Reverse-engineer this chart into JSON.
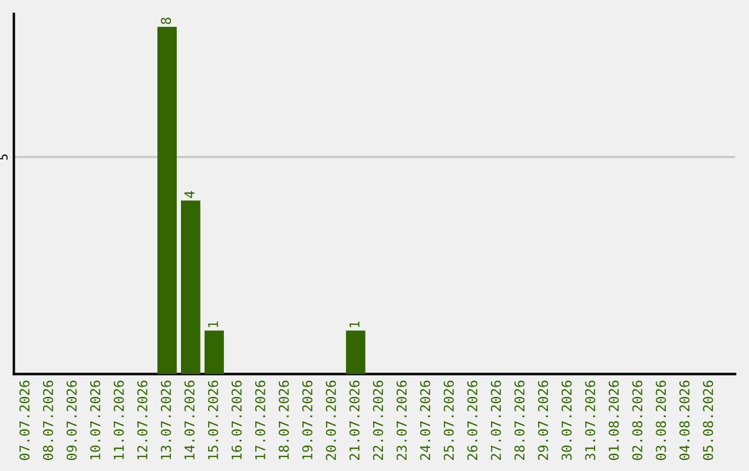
{
  "chart_data": {
    "type": "bar",
    "categories": [
      "07.07.2026",
      "08.07.2026",
      "09.07.2026",
      "10.07.2026",
      "11.07.2026",
      "12.07.2026",
      "13.07.2026",
      "14.07.2026",
      "15.07.2026",
      "16.07.2026",
      "17.07.2026",
      "18.07.2026",
      "19.07.2026",
      "20.07.2026",
      "21.07.2026",
      "22.07.2026",
      "23.07.2026",
      "24.07.2026",
      "25.07.2026",
      "26.07.2026",
      "27.07.2026",
      "28.07.2026",
      "29.07.2026",
      "30.07.2026",
      "31.07.2026",
      "01.08.2026",
      "02.08.2026",
      "03.08.2026",
      "04.08.2026",
      "05.08.2026"
    ],
    "values": [
      0,
      0,
      0,
      0,
      0,
      0,
      8,
      4,
      1,
      0,
      0,
      0,
      0,
      0,
      1,
      0,
      0,
      0,
      0,
      0,
      0,
      0,
      0,
      0,
      0,
      0,
      0,
      0,
      0,
      0
    ],
    "value_labels": [
      null,
      null,
      null,
      null,
      null,
      null,
      "8",
      "4",
      "1",
      null,
      null,
      null,
      null,
      null,
      "1",
      null,
      null,
      null,
      null,
      null,
      null,
      null,
      null,
      null,
      null,
      null,
      null,
      null,
      null,
      null
    ],
    "color": "#336600",
    "ylim": [
      0,
      8.3
    ],
    "yticks": [
      5
    ],
    "grid": "y",
    "legend": false
  }
}
